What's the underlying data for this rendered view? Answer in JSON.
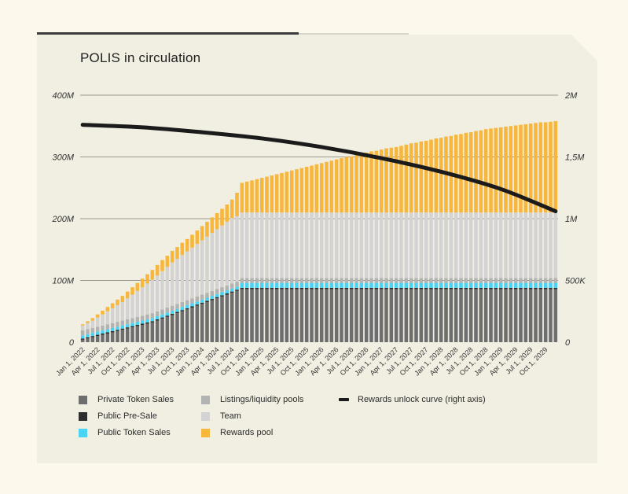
{
  "colors": {
    "private": "#6e6e6e",
    "presale": "#2d2d2d",
    "public": "#4ad3f5",
    "listings": "#b3b3b3",
    "team": "#d3d3d3",
    "rewards": "#f7b63c",
    "curve": "#1b1b1b"
  },
  "legend": [
    {
      "key": "private",
      "label": "Private Token Sales"
    },
    {
      "key": "presale",
      "label": "Public Pre-Sale"
    },
    {
      "key": "public",
      "label": "Public Token Sales"
    },
    {
      "key": "listings",
      "label": "Listings/liquidity pools"
    },
    {
      "key": "team",
      "label": "Team"
    },
    {
      "key": "rewards",
      "label": "Rewards pool"
    },
    {
      "key": "curve",
      "label": "Rewards unlock curve (right axis)"
    }
  ],
  "chart_data": {
    "type": "bar",
    "stacked": true,
    "title": "POLIS in circulation",
    "xlabel": "",
    "ylabel": "",
    "ylim": [
      0,
      400000000
    ],
    "y2lim": [
      0,
      2000000
    ],
    "y_ticks": [
      "0",
      "100M",
      "200M",
      "300M",
      "400M"
    ],
    "y2_ticks": [
      "0",
      "500K",
      "1M",
      "1,5M",
      "2M"
    ],
    "x_tick_labels": [
      "Jan 1, 2022",
      "Apr 1, 2022",
      "Jul 1, 2022",
      "Oct 1, 2022",
      "Jan 1, 2023",
      "Apr 1, 2023",
      "Jul 1, 2023",
      "Oct 1, 2023",
      "Jan 1, 2024",
      "Apr 1, 2024",
      "Jul 1, 2024",
      "Oct 1, 2024",
      "Jan 1, 2025",
      "Apr 1, 2025",
      "Jul 1, 2025",
      "Oct 1, 2025",
      "Jan 1, 2026",
      "Apr 1, 2026",
      "Jul 1, 2026",
      "Oct 1, 2026",
      "Jan 1, 2027",
      "Apr 1, 2027",
      "Jul 1, 2027",
      "Oct 1, 2027",
      "Jan 1, 2028",
      "Apr 1, 2028",
      "Jul 1, 2028",
      "Oct 1, 2028",
      "Jan 1, 2029",
      "Apr 1, 2029",
      "Jul 1, 2029",
      "Oct 1, 2029"
    ],
    "n_bars": 96,
    "series": [
      {
        "name": "Private Token Sales",
        "values_M": [
          4,
          6,
          8,
          10,
          12,
          14,
          16,
          18,
          20,
          22,
          24,
          26,
          28,
          30,
          32,
          35,
          38,
          41,
          44,
          47,
          50,
          53,
          56,
          59,
          62,
          65,
          68,
          71,
          74,
          77,
          80,
          83,
          86,
          86,
          86,
          86,
          86,
          86,
          86,
          86,
          86,
          86,
          86,
          86,
          86,
          86,
          86,
          86,
          86,
          86,
          86,
          86,
          86,
          86,
          86,
          86,
          86,
          86,
          86,
          86,
          86,
          86,
          86,
          86,
          86,
          86,
          86,
          86,
          86,
          86,
          86,
          86,
          86,
          86,
          86,
          86,
          86,
          86,
          86,
          86,
          86,
          86,
          86,
          86,
          86,
          86,
          86,
          86,
          86,
          86,
          86,
          86,
          86,
          86,
          86,
          86
        ]
      },
      {
        "name": "Public Pre-Sale",
        "values_M": [
          2,
          2,
          2,
          2,
          2,
          2,
          2,
          2,
          2,
          2,
          2,
          2,
          2,
          2,
          2,
          2,
          2,
          2,
          2,
          2,
          2,
          2,
          2,
          2,
          2,
          2,
          2,
          2,
          2,
          2,
          2,
          2,
          2,
          2,
          2,
          2,
          2,
          2,
          2,
          2,
          2,
          2,
          2,
          2,
          2,
          2,
          2,
          2,
          2,
          2,
          2,
          2,
          2,
          2,
          2,
          2,
          2,
          2,
          2,
          2,
          2,
          2,
          2,
          2,
          2,
          2,
          2,
          2,
          2,
          2,
          2,
          2,
          2,
          2,
          2,
          2,
          2,
          2,
          2,
          2,
          2,
          2,
          2,
          2,
          2,
          2,
          2,
          2,
          2,
          2,
          2,
          2,
          2,
          2,
          2,
          2
        ]
      },
      {
        "name": "Public Token Sales",
        "values_M": [
          5,
          5,
          5,
          5,
          5,
          5,
          5,
          5,
          5,
          5,
          5,
          5,
          5,
          5,
          5,
          5,
          5,
          5,
          5,
          5,
          5,
          5,
          5,
          5,
          5,
          5,
          5,
          5,
          5,
          5,
          5,
          5,
          8,
          8,
          8,
          8,
          8,
          8,
          8,
          8,
          8,
          8,
          8,
          8,
          8,
          8,
          8,
          8,
          8,
          8,
          8,
          8,
          8,
          8,
          8,
          8,
          8,
          8,
          8,
          8,
          8,
          8,
          8,
          8,
          8,
          8,
          8,
          8,
          8,
          8,
          8,
          8,
          8,
          8,
          8,
          8,
          8,
          8,
          8,
          8,
          8,
          8,
          8,
          8,
          8,
          8,
          8,
          8,
          8,
          8,
          8,
          8,
          8,
          8,
          8,
          8
        ]
      },
      {
        "name": "Listings/liquidity pools",
        "values_M": [
          8,
          8,
          8,
          8,
          8,
          8,
          8,
          8,
          8,
          8,
          8,
          8,
          8,
          8,
          8,
          8,
          8,
          8,
          8,
          8,
          8,
          8,
          8,
          8,
          8,
          8,
          8,
          8,
          8,
          8,
          8,
          8,
          8,
          8,
          8,
          8,
          8,
          8,
          8,
          8,
          8,
          8,
          8,
          8,
          8,
          8,
          8,
          8,
          8,
          8,
          8,
          8,
          8,
          8,
          8,
          8,
          8,
          8,
          8,
          8,
          8,
          8,
          8,
          8,
          8,
          8,
          8,
          8,
          8,
          8,
          8,
          8,
          8,
          8,
          8,
          8,
          8,
          8,
          8,
          8,
          8,
          8,
          8,
          8,
          8,
          8,
          8,
          8,
          8,
          8,
          8,
          8,
          8,
          8,
          8,
          8
        ]
      },
      {
        "name": "Team",
        "values_M": [
          8,
          10,
          12,
          15,
          18,
          21,
          24,
          27,
          30,
          34,
          38,
          42,
          46,
          50,
          54,
          58,
          62,
          66,
          70,
          73,
          76,
          79,
          82,
          85,
          88,
          91,
          94,
          97,
          100,
          103,
          106,
          106,
          106,
          106,
          106,
          106,
          106,
          106,
          106,
          106,
          106,
          106,
          106,
          106,
          106,
          106,
          106,
          106,
          106,
          106,
          106,
          106,
          106,
          106,
          106,
          106,
          106,
          106,
          106,
          106,
          106,
          106,
          106,
          106,
          106,
          106,
          106,
          106,
          106,
          106,
          106,
          106,
          106,
          106,
          106,
          106,
          106,
          106,
          106,
          106,
          106,
          106,
          106,
          106,
          106,
          106,
          106,
          106,
          106,
          106,
          106,
          106,
          106,
          106,
          106,
          106
        ]
      },
      {
        "name": "Rewards pool",
        "values_M": [
          2,
          3,
          4,
          5,
          6,
          7,
          8,
          9,
          10,
          11,
          12,
          13,
          14,
          15,
          16,
          17,
          18,
          18,
          19,
          19,
          20,
          20,
          21,
          22,
          23,
          24,
          25,
          26,
          27,
          28,
          30,
          38,
          48,
          50,
          52,
          54,
          56,
          58,
          60,
          62,
          64,
          66,
          68,
          70,
          72,
          74,
          76,
          78,
          80,
          82,
          84,
          86,
          88,
          90,
          91,
          93,
          95,
          97,
          99,
          100,
          102,
          104,
          105,
          106,
          108,
          110,
          112,
          113,
          115,
          116,
          118,
          120,
          121,
          123,
          124,
          126,
          127,
          129,
          130,
          132,
          133,
          135,
          136,
          137,
          138,
          139,
          140,
          141,
          142,
          143,
          144,
          145,
          146,
          146,
          147,
          148
        ]
      }
    ],
    "line_series": {
      "name": "Rewards unlock curve (right axis)",
      "axis": "right",
      "x_index": [
        0,
        12,
        24,
        36,
        48,
        60,
        72,
        84,
        95
      ],
      "values": [
        1760000,
        1740000,
        1700000,
        1650000,
        1580000,
        1490000,
        1380000,
        1240000,
        1060000
      ]
    }
  }
}
